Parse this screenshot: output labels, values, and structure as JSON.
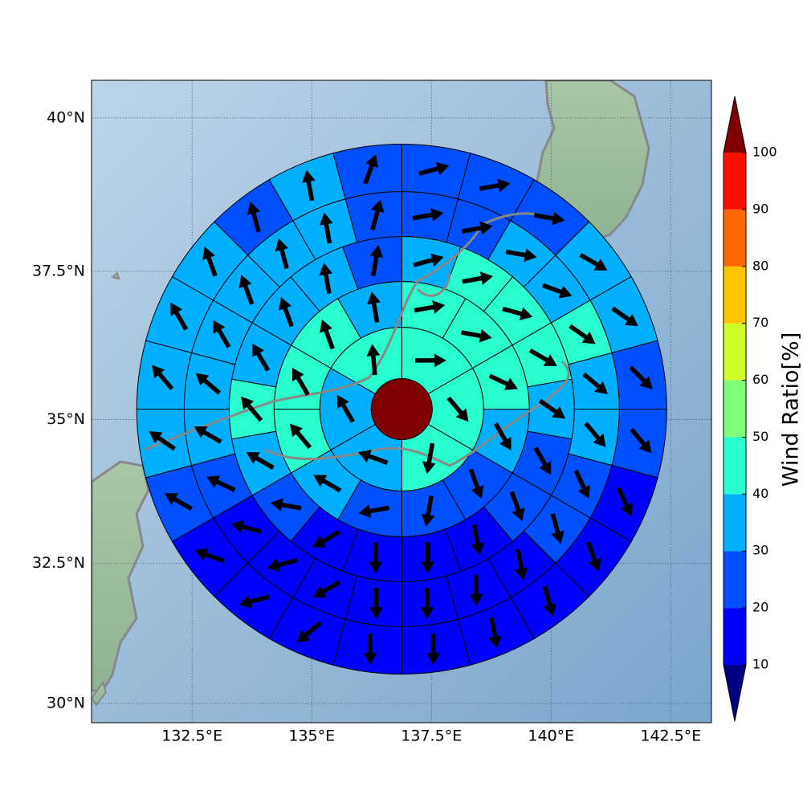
{
  "chart_data": {
    "type": "polar-sector-map",
    "projection": "mercator",
    "xlim": [
      130.4,
      143.35
    ],
    "ylim": [
      29.65,
      40.6
    ],
    "xticks": [
      {
        "value": 132.5,
        "label": "132.5°E"
      },
      {
        "value": 135,
        "label": "135°E"
      },
      {
        "value": 137.5,
        "label": "137.5°E"
      },
      {
        "value": 140,
        "label": "140°E"
      },
      {
        "value": 142.5,
        "label": "142.5°E"
      }
    ],
    "yticks": [
      {
        "value": 30,
        "label": "30°N"
      },
      {
        "value": 32.5,
        "label": "32.5°N"
      },
      {
        "value": 35,
        "label": "35°N"
      },
      {
        "value": 37.5,
        "label": "37.5°N"
      },
      {
        "value": 40,
        "label": "40°N"
      }
    ],
    "grid": true,
    "center": [
      136.88,
      35.18
    ],
    "center_value": 105,
    "rings": [
      {
        "values": [
          45,
          45,
          45,
          35,
          35,
          45
        ],
        "directions": [
          90,
          140,
          190,
          290,
          330,
          355
        ]
      },
      {
        "values": [
          45,
          45,
          45,
          35,
          25,
          25,
          25,
          35,
          45,
          45,
          45,
          35
        ],
        "directions": [
          80,
          100,
          115,
          150,
          160,
          190,
          260,
          300,
          320,
          330,
          340,
          350
        ]
      },
      {
        "values": [
          35,
          45,
          45,
          45,
          35,
          25,
          25,
          15,
          15,
          15,
          15,
          25,
          35,
          45,
          35,
          35,
          35,
          25
        ],
        "directions": [
          75,
          80,
          105,
          120,
          125,
          150,
          160,
          170,
          180,
          180,
          240,
          280,
          300,
          320,
          330,
          340,
          350,
          10
        ]
      },
      {
        "values": [
          25,
          25,
          35,
          35,
          45,
          35,
          35,
          25,
          25,
          15,
          15,
          15,
          15,
          15,
          15,
          15,
          25,
          35,
          35,
          35,
          35,
          35,
          35,
          25
        ],
        "directions": [
          80,
          80,
          100,
          110,
          125,
          130,
          140,
          155,
          165,
          170,
          180,
          180,
          180,
          240,
          255,
          285,
          295,
          300,
          310,
          330,
          340,
          345,
          350,
          15
        ]
      },
      {
        "values": [
          25,
          25,
          25,
          35,
          35,
          25,
          25,
          15,
          15,
          15,
          15,
          15,
          15,
          15,
          15,
          15,
          25,
          35,
          35,
          35,
          35,
          25,
          35,
          25
        ],
        "directions": [
          75,
          80,
          100,
          120,
          125,
          135,
          140,
          155,
          160,
          165,
          170,
          180,
          180,
          230,
          255,
          290,
          300,
          305,
          320,
          330,
          340,
          345,
          350,
          20
        ]
      }
    ],
    "colorbar": {
      "label": "Wind Ratio[%]",
      "levels": [
        10,
        20,
        30,
        40,
        50,
        60,
        70,
        80,
        90,
        100
      ],
      "colors": [
        "#0000ff",
        "#0050ff",
        "#00b0ff",
        "#29ffce",
        "#7dff7a",
        "#ceff29",
        "#ffc400",
        "#ff6800",
        "#ff0d00"
      ],
      "under_color": "#000080",
      "over_color": "#800000"
    }
  }
}
